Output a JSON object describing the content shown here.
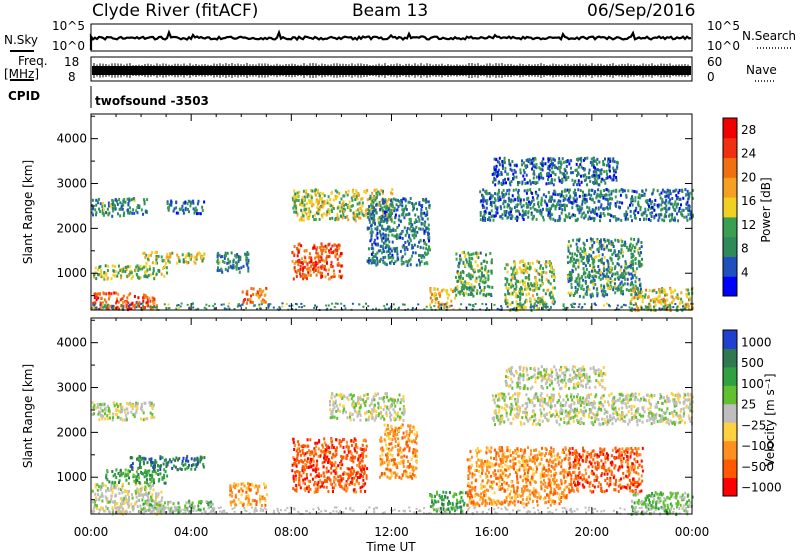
{
  "header": {
    "station": "Clyde River (fitACF)",
    "beam": "Beam 13",
    "date": "06/Sep/2016"
  },
  "panels": {
    "nsky_label": "N.Sky",
    "nsearch_label": "N.Search",
    "nsky_ticks": [
      "10^5",
      "10^0"
    ],
    "freq_label_1": "Freq.",
    "freq_label_2": "[MHz]",
    "freq_ticks": [
      "18",
      "8"
    ],
    "nave_label": "Nave",
    "nave_ticks": [
      "60",
      "0"
    ],
    "cpid_label": "CPID",
    "cpid_text": "twofsound -3503"
  },
  "colors": {
    "power_scale": [
      "#0000ff",
      "#2050c0",
      "#2f8a5a",
      "#38a050",
      "#f0d020",
      "#f5a020",
      "#f07010",
      "#f03010",
      "#f00000"
    ],
    "velocity_scale": [
      "#ff0000",
      "#ff5a00",
      "#ff9020",
      "#ffd040",
      "#bebebe",
      "#60c030",
      "#30a040",
      "#2f7850",
      "#2040d0"
    ],
    "ground_scatter": "#bebebe"
  },
  "chart_data": [
    {
      "type": "heatmap",
      "name": "power-rti",
      "xlabel": "Time UT",
      "ylabel": "Slant Range [km]",
      "xlim": [
        0,
        24
      ],
      "ylim": [
        180,
        4550
      ],
      "x_ticks": [
        "00:00",
        "04:00",
        "08:00",
        "12:00",
        "16:00",
        "20:00",
        "00:00"
      ],
      "y_ticks": [
        "1000",
        "2000",
        "3000",
        "4000"
      ],
      "colorbar": {
        "label": "Power [dB]",
        "ticks": [
          "4",
          "8",
          "12",
          "16",
          "20",
          "24",
          "28"
        ],
        "range": [
          0,
          30
        ]
      },
      "features": [
        {
          "t0": 0.0,
          "t1": 3.0,
          "r0": 900,
          "r1": 1200,
          "level": 12
        },
        {
          "t0": 0.0,
          "t1": 2.6,
          "r0": 220,
          "r1": 600,
          "level": 24
        },
        {
          "t0": 2.0,
          "t1": 4.5,
          "r0": 1250,
          "r1": 1500,
          "level": 14
        },
        {
          "t0": 0.0,
          "t1": 2.2,
          "r0": 2300,
          "r1": 2700,
          "level": 8
        },
        {
          "t0": 3.0,
          "t1": 4.5,
          "r0": 2350,
          "r1": 2650,
          "level": 6
        },
        {
          "t0": 5.0,
          "t1": 6.3,
          "r0": 1050,
          "r1": 1500,
          "level": 8
        },
        {
          "t0": 6.0,
          "t1": 7.0,
          "r0": 350,
          "r1": 700,
          "level": 22
        },
        {
          "t0": 8.0,
          "t1": 10.0,
          "r0": 900,
          "r1": 1700,
          "level": 24
        },
        {
          "t0": 8.0,
          "t1": 12.0,
          "r0": 2200,
          "r1": 2900,
          "level": 14
        },
        {
          "t0": 11.0,
          "t1": 13.5,
          "r0": 1200,
          "r1": 2700,
          "level": 7
        },
        {
          "t0": 13.5,
          "t1": 14.5,
          "r0": 250,
          "r1": 700,
          "level": 18
        },
        {
          "t0": 14.5,
          "t1": 16.0,
          "r0": 500,
          "r1": 1500,
          "level": 10
        },
        {
          "t0": 15.5,
          "t1": 24.0,
          "r0": 2200,
          "r1": 2900,
          "level": 6
        },
        {
          "t0": 16.5,
          "t1": 18.5,
          "r0": 200,
          "r1": 1300,
          "level": 12
        },
        {
          "t0": 19.0,
          "t1": 22.0,
          "r0": 500,
          "r1": 1800,
          "level": 9
        },
        {
          "t0": 21.5,
          "t1": 24.0,
          "r0": 200,
          "r1": 700,
          "level": 16
        },
        {
          "t0": 16.0,
          "t1": 21.0,
          "r0": 3000,
          "r1": 3600,
          "level": 5
        }
      ]
    },
    {
      "type": "heatmap",
      "name": "velocity-rti",
      "xlabel": "Time UT",
      "ylabel": "Slant Range [km]",
      "xlim": [
        0,
        24
      ],
      "ylim": [
        180,
        4550
      ],
      "x_ticks": [
        "00:00",
        "04:00",
        "08:00",
        "12:00",
        "16:00",
        "20:00",
        "00:00"
      ],
      "y_ticks": [
        "1000",
        "2000",
        "3000",
        "4000"
      ],
      "colorbar": {
        "label": "Velocity [m s⁻¹]",
        "ticks": [
          "1000",
          "500",
          "100",
          "25",
          "−25",
          "−100",
          "−500",
          "−1000"
        ]
      },
      "features": [
        {
          "t0": 0.0,
          "t1": 2.8,
          "r0": 200,
          "r1": 900,
          "class": 4
        },
        {
          "t0": 0.5,
          "t1": 3.0,
          "r0": 900,
          "r1": 1200,
          "class": 6
        },
        {
          "t0": 1.5,
          "t1": 4.5,
          "r0": 1200,
          "r1": 1500,
          "class": 7
        },
        {
          "t0": 0.0,
          "t1": 2.5,
          "r0": 2300,
          "r1": 2700,
          "class": 4
        },
        {
          "t0": 2.0,
          "t1": 5.0,
          "r0": 250,
          "r1": 500,
          "class": 5
        },
        {
          "t0": 5.5,
          "t1": 7.0,
          "r0": 400,
          "r1": 900,
          "class": 2
        },
        {
          "t0": 8.0,
          "t1": 11.0,
          "r0": 700,
          "r1": 1900,
          "class": 1
        },
        {
          "t0": 9.5,
          "t1": 12.5,
          "r0": 2300,
          "r1": 2900,
          "class": 4
        },
        {
          "t0": 11.5,
          "t1": 13.0,
          "r0": 1000,
          "r1": 2200,
          "class": 2
        },
        {
          "t0": 13.5,
          "t1": 15.0,
          "r0": 250,
          "r1": 700,
          "class": 6
        },
        {
          "t0": 15.0,
          "t1": 19.0,
          "r0": 400,
          "r1": 1700,
          "class": 2
        },
        {
          "t0": 16.0,
          "t1": 24.0,
          "r0": 2200,
          "r1": 2900,
          "class": 4
        },
        {
          "t0": 19.0,
          "t1": 22.0,
          "r0": 700,
          "r1": 1700,
          "class": 1
        },
        {
          "t0": 21.5,
          "t1": 24.0,
          "r0": 200,
          "r1": 700,
          "class": 5
        },
        {
          "t0": 16.5,
          "t1": 20.5,
          "r0": 3000,
          "r1": 3500,
          "class": 4
        }
      ]
    }
  ]
}
